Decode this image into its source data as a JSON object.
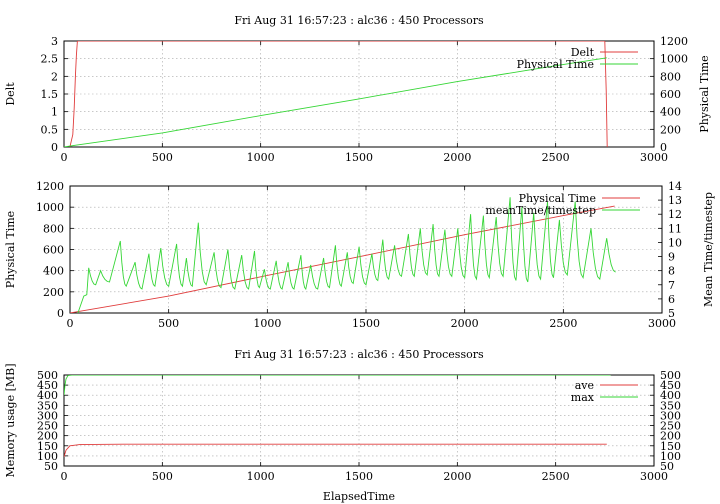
{
  "chart_data": [
    {
      "type": "line",
      "title": "Fri Aug 31 16:57:23 : alc36 : 450 Processors",
      "xlabel": "",
      "ylabel": "Delt",
      "y2label": "Physical Time",
      "xlim": [
        0,
        3000
      ],
      "ylim": [
        0,
        3
      ],
      "y2lim": [
        0,
        1200
      ],
      "xticks": [
        0,
        500,
        1000,
        1500,
        2000,
        2500,
        3000
      ],
      "yticks": [
        0,
        0.5,
        1,
        1.5,
        2,
        2.5,
        3
      ],
      "y2ticks": [
        0,
        200,
        400,
        600,
        800,
        1000,
        1200
      ],
      "grid": true,
      "legend_position": "top-right",
      "series": [
        {
          "name": "Delt",
          "axis": "left",
          "color": "#e03c3c",
          "points": [
            [
              30,
              0
            ],
            [
              45,
              0.35
            ],
            [
              52,
              1.1
            ],
            [
              58,
              2.0
            ],
            [
              63,
              2.6
            ],
            [
              68,
              3.0
            ],
            [
              2750,
              3.0
            ],
            [
              2757,
              1.6
            ],
            [
              2762,
              0
            ]
          ]
        },
        {
          "name": "Physical Time",
          "axis": "right",
          "color": "#36d636",
          "points": [
            [
              0,
              0
            ],
            [
              60,
              20
            ],
            [
              500,
              160
            ],
            [
              1000,
              355
            ],
            [
              1500,
              545
            ],
            [
              2000,
              740
            ],
            [
              2500,
              920
            ],
            [
              2760,
              1010
            ]
          ]
        }
      ]
    },
    {
      "type": "line",
      "title": "",
      "xlabel": "",
      "ylabel": "Physical Time",
      "y2label": "Mean Time/timestep",
      "xlim": [
        0,
        3000
      ],
      "ylim": [
        0,
        1200
      ],
      "y2lim": [
        5,
        14
      ],
      "xticks": [
        0,
        500,
        1000,
        1500,
        2000,
        2500,
        3000
      ],
      "yticks": [
        0,
        200,
        400,
        600,
        800,
        1000,
        1200
      ],
      "y2ticks": [
        5,
        6,
        7,
        8,
        9,
        10,
        11,
        12,
        13,
        14
      ],
      "grid": true,
      "legend_position": "top-right",
      "series": [
        {
          "name": "Physical Time",
          "axis": "left",
          "color": "#e03c3c",
          "points": [
            [
              0,
              0
            ],
            [
              60,
              20
            ],
            [
              500,
              160
            ],
            [
              1000,
              355
            ],
            [
              1500,
              545
            ],
            [
              2000,
              740
            ],
            [
              2500,
              920
            ],
            [
              2760,
              1010
            ]
          ]
        },
        {
          "name": "meanTime/timestep",
          "axis": "right",
          "color": "#36d636",
          "peaks": [
            [
              95,
              8.2
            ],
            [
              155,
              8.0
            ],
            [
              255,
              10.1
            ],
            [
              330,
              8.6
            ],
            [
              400,
              9.2
            ],
            [
              460,
              9.6
            ],
            [
              540,
              9.9
            ],
            [
              590,
              8.9
            ],
            [
              650,
              11.4
            ],
            [
              730,
              9.3
            ],
            [
              800,
              9.5
            ],
            [
              870,
              9.1
            ],
            [
              935,
              9.4
            ],
            [
              985,
              8.1
            ],
            [
              1045,
              8.7
            ],
            [
              1105,
              8.6
            ],
            [
              1170,
              9.1
            ],
            [
              1220,
              8.4
            ],
            [
              1285,
              8.9
            ],
            [
              1345,
              9.8
            ],
            [
              1405,
              9.3
            ],
            [
              1465,
              9.7
            ],
            [
              1530,
              9.2
            ],
            [
              1585,
              10.2
            ],
            [
              1645,
              9.8
            ],
            [
              1715,
              10.6
            ],
            [
              1775,
              11.0
            ],
            [
              1840,
              11.3
            ],
            [
              1900,
              10.9
            ],
            [
              1965,
              11.0
            ],
            [
              2030,
              12.0
            ],
            [
              2095,
              11.9
            ],
            [
              2160,
              11.8
            ],
            [
              2230,
              13.2
            ],
            [
              2290,
              12.5
            ],
            [
              2350,
              12.1
            ],
            [
              2420,
              12.9
            ],
            [
              2480,
              11.6
            ],
            [
              2560,
              12.9
            ],
            [
              2640,
              11.0
            ],
            [
              2720,
              10.3
            ]
          ],
          "troughs": [
            [
              40,
              5.0
            ],
            [
              70,
              6.2
            ],
            [
              85,
              6.3
            ],
            [
              130,
              7.0
            ],
            [
              200,
              7.2
            ],
            [
              285,
              6.9
            ],
            [
              365,
              6.7
            ],
            [
              430,
              6.9
            ],
            [
              500,
              6.9
            ],
            [
              570,
              6.9
            ],
            [
              620,
              6.9
            ],
            [
              690,
              7.0
            ],
            [
              765,
              6.8
            ],
            [
              835,
              6.7
            ],
            [
              905,
              6.7
            ],
            [
              960,
              6.8
            ],
            [
              1015,
              6.7
            ],
            [
              1075,
              6.7
            ],
            [
              1135,
              6.7
            ],
            [
              1195,
              6.7
            ],
            [
              1255,
              6.7
            ],
            [
              1315,
              6.8
            ],
            [
              1375,
              6.9
            ],
            [
              1435,
              7.1
            ],
            [
              1500,
              7.0
            ],
            [
              1560,
              7.3
            ],
            [
              1615,
              7.4
            ],
            [
              1680,
              7.6
            ],
            [
              1745,
              7.6
            ],
            [
              1810,
              7.7
            ],
            [
              1870,
              7.6
            ],
            [
              1935,
              7.6
            ],
            [
              2000,
              7.5
            ],
            [
              2060,
              7.4
            ],
            [
              2125,
              7.5
            ],
            [
              2195,
              7.6
            ],
            [
              2260,
              7.3
            ],
            [
              2320,
              7.2
            ],
            [
              2385,
              7.4
            ],
            [
              2450,
              7.5
            ],
            [
              2520,
              7.7
            ],
            [
              2600,
              7.5
            ],
            [
              2685,
              7.4
            ],
            [
              2765,
              7.9
            ]
          ]
        }
      ]
    },
    {
      "type": "line",
      "title": "Fri Aug 31 16:57:23 : alc36 : 450 Processors",
      "xlabel": "ElapsedTime",
      "ylabel": "Memory usage [MB]",
      "y2label": "",
      "xlim": [
        0,
        3000
      ],
      "ylim": [
        50,
        500
      ],
      "y2lim": [
        50,
        500
      ],
      "xticks": [
        0,
        500,
        1000,
        1500,
        2000,
        2500,
        3000
      ],
      "yticks": [
        50,
        100,
        150,
        200,
        250,
        300,
        350,
        400,
        450,
        500
      ],
      "y2ticks": [
        50,
        100,
        150,
        200,
        250,
        300,
        350,
        400,
        450,
        500
      ],
      "grid": true,
      "legend_position": "top-right",
      "series": [
        {
          "name": "ave",
          "axis": "left",
          "color": "#e03c3c",
          "points": [
            [
              0,
              95
            ],
            [
              10,
              128
            ],
            [
              30,
              150
            ],
            [
              80,
              156
            ],
            [
              300,
              158
            ],
            [
              2760,
              158
            ]
          ]
        },
        {
          "name": "max",
          "axis": "left",
          "color": "#36d636",
          "points": [
            [
              0,
              400
            ],
            [
              5,
              450
            ],
            [
              10,
              480
            ],
            [
              20,
              497
            ],
            [
              40,
              500
            ],
            [
              2780,
              500
            ]
          ]
        }
      ]
    }
  ]
}
